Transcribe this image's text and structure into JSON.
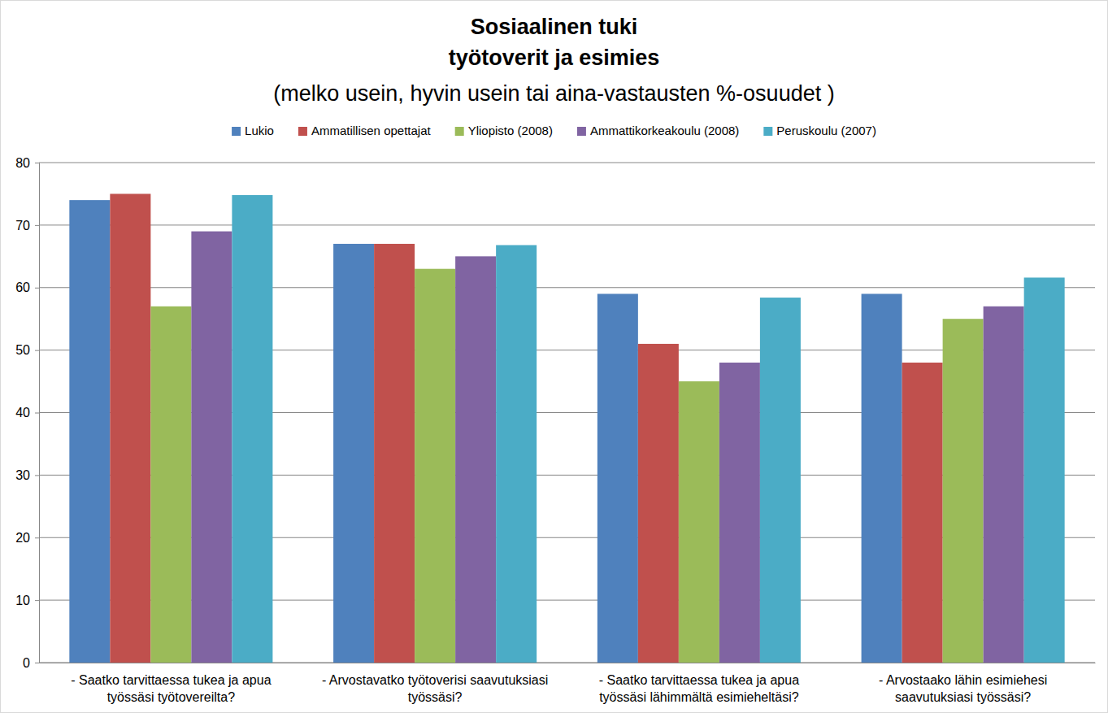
{
  "chart_data": {
    "type": "bar",
    "title": "Sosiaalinen tuki\ntyötoverit ja esimies",
    "subtitle": "(melko usein, hyvin usein tai aina-vastausten %-osuudet  )",
    "categories": [
      "- Saatko tarvittaessa tukea ja apua työssäsi työtovereilta?",
      "- Arvostavatko työtoverisi saavutuksiasi työssäsi?",
      "- Saatko tarvittaessa tukea ja apua työssäsi lähimmältä esimieheltäsi?",
      "- Arvostaako lähin esimiehesi saavutuksiasi työssäsi?"
    ],
    "series": [
      {
        "name": "Lukio",
        "color": "#4f81bd",
        "values": [
          74,
          67,
          59,
          59
        ]
      },
      {
        "name": "Ammatillisen opettajat",
        "color": "#c0504d",
        "values": [
          75,
          67,
          51,
          48
        ]
      },
      {
        "name": "Yliopisto (2008)",
        "color": "#9bbb59",
        "values": [
          57,
          63,
          45,
          55
        ]
      },
      {
        "name": "Ammattikorkeakoulu (2008)",
        "color": "#8064a2",
        "values": [
          69,
          65,
          48,
          57
        ]
      },
      {
        "name": "Peruskoulu (2007)",
        "color": "#4bacc6",
        "values": [
          74.8,
          66.8,
          58.4,
          61.6
        ]
      }
    ],
    "ylim": [
      0,
      80
    ],
    "yticks": [
      0,
      10,
      20,
      30,
      40,
      50,
      60,
      70,
      80
    ],
    "grid": true,
    "legend": "top"
  }
}
